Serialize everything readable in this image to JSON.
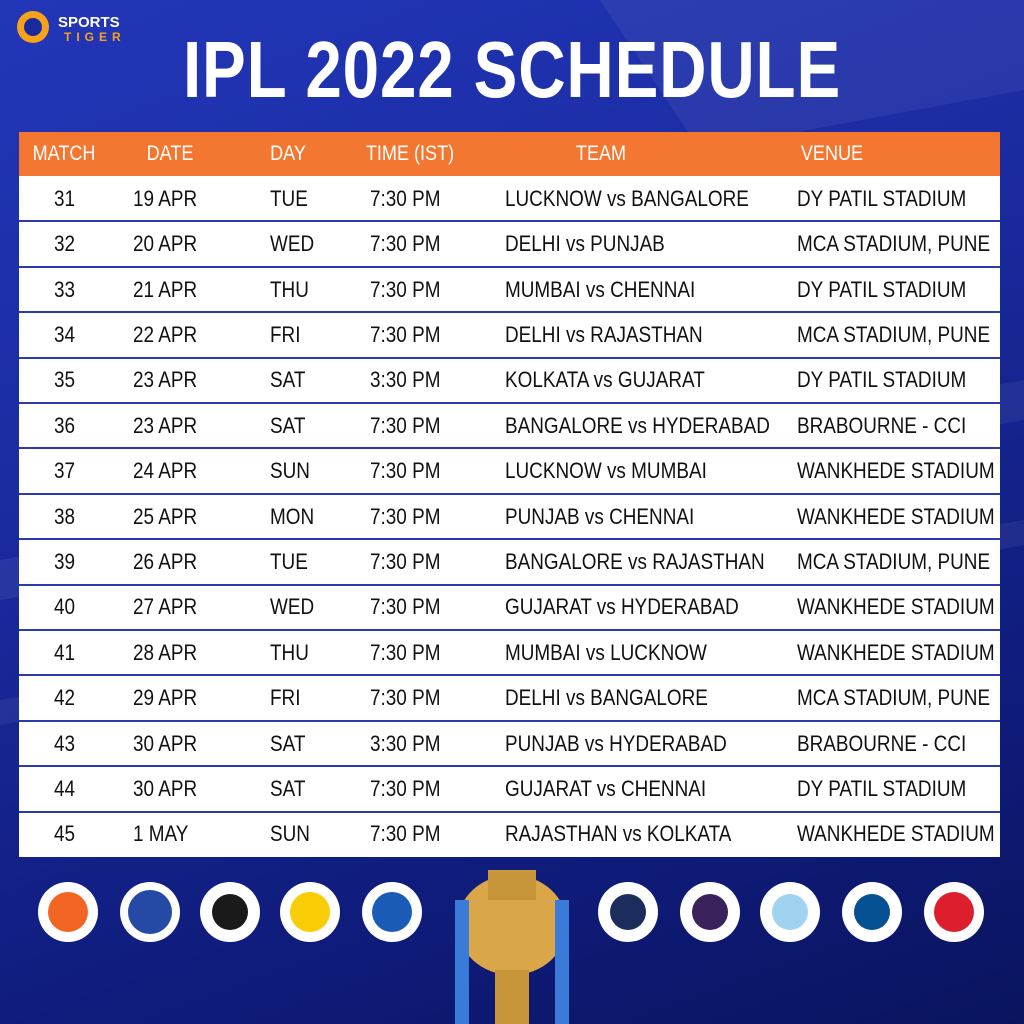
{
  "logo": {
    "line1": "SPORTS",
    "line2": "TIGER"
  },
  "title": "IPL 2022 SCHEDULE",
  "table": {
    "headers": [
      "MATCH",
      "DATE",
      "DAY",
      "TIME (IST)",
      "TEAM",
      "VENUE"
    ],
    "rows": [
      [
        "31",
        "19 APR",
        "TUE",
        "7:30 PM",
        "LUCKNOW vs BANGALORE",
        "DY PATIL STADIUM"
      ],
      [
        "32",
        "20 APR",
        "WED",
        "7:30 PM",
        "DELHI vs PUNJAB",
        "MCA STADIUM, PUNE"
      ],
      [
        "33",
        "21 APR",
        "THU",
        "7:30 PM",
        "MUMBAI vs CHENNAI",
        "DY PATIL STADIUM"
      ],
      [
        "34",
        "22 APR",
        "FRI",
        "7:30 PM",
        "DELHI vs RAJASTHAN",
        "MCA STADIUM, PUNE"
      ],
      [
        "35",
        "23 APR",
        "SAT",
        "3:30 PM",
        "KOLKATA vs GUJARAT",
        "DY PATIL STADIUM"
      ],
      [
        "36",
        "23 APR",
        "SAT",
        "7:30 PM",
        "BANGALORE vs HYDERABAD",
        "BRABOURNE - CCI"
      ],
      [
        "37",
        "24 APR",
        "SUN",
        "7:30 PM",
        "LUCKNOW vs MUMBAI",
        "WANKHEDE STADIUM"
      ],
      [
        "38",
        "25 APR",
        "MON",
        "7:30 PM",
        "PUNJAB vs CHENNAI",
        "WANKHEDE STADIUM"
      ],
      [
        "39",
        "26 APR",
        "TUE",
        "7:30 PM",
        "BANGALORE vs RAJASTHAN",
        "MCA STADIUM, PUNE"
      ],
      [
        "40",
        "27 APR",
        "WED",
        "7:30 PM",
        "GUJARAT vs HYDERABAD",
        "WANKHEDE STADIUM"
      ],
      [
        "41",
        "28 APR",
        "THU",
        "7:30 PM",
        "MUMBAI vs LUCKNOW",
        "WANKHEDE STADIUM"
      ],
      [
        "42",
        "29 APR",
        "FRI",
        "7:30 PM",
        "DELHI vs BANGALORE",
        "MCA STADIUM, PUNE"
      ],
      [
        "43",
        "30 APR",
        "SAT",
        "3:30 PM",
        "PUNJAB vs HYDERABAD",
        "BRABOURNE - CCI"
      ],
      [
        "44",
        "30 APR",
        "SAT",
        "7:30 PM",
        "GUJARAT vs CHENNAI",
        "DY PATIL STADIUM"
      ],
      [
        "45",
        "1 MAY",
        "SUN",
        "7:30 PM",
        "RAJASTHAN vs KOLKATA",
        "WANKHEDE STADIUM"
      ]
    ]
  }
}
